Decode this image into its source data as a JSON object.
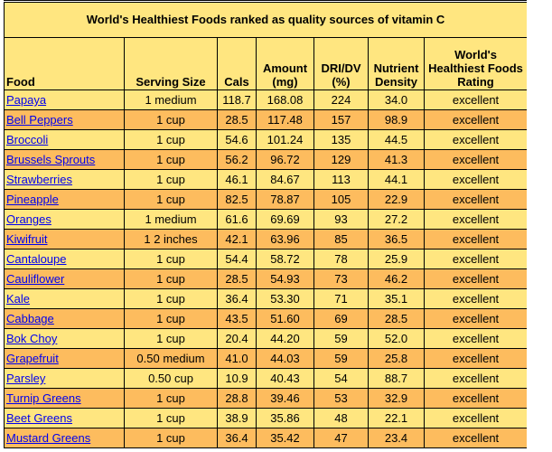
{
  "table": {
    "title": "World's Healthiest Foods ranked as quality sources of vitamin C",
    "headers": [
      "Food",
      "Serving Size",
      "Cals",
      "Amount (mg)",
      "DRI/DV (%)",
      "Nutrient Density",
      "World's Healthiest Foods Rating"
    ],
    "rows": [
      {
        "food": "Papaya",
        "serving": "1 medium",
        "cals": "118.7",
        "amount": "168.08",
        "dri": "224",
        "density": "34.0",
        "rating": "excellent"
      },
      {
        "food": "Bell Peppers",
        "serving": "1 cup",
        "cals": "28.5",
        "amount": "117.48",
        "dri": "157",
        "density": "98.9",
        "rating": "excellent"
      },
      {
        "food": "Broccoli",
        "serving": "1 cup",
        "cals": "54.6",
        "amount": "101.24",
        "dri": "135",
        "density": "44.5",
        "rating": "excellent"
      },
      {
        "food": "Brussels Sprouts",
        "serving": "1 cup",
        "cals": "56.2",
        "amount": "96.72",
        "dri": "129",
        "density": "41.3",
        "rating": "excellent"
      },
      {
        "food": "Strawberries",
        "serving": "1 cup",
        "cals": "46.1",
        "amount": "84.67",
        "dri": "113",
        "density": "44.1",
        "rating": "excellent"
      },
      {
        "food": "Pineapple",
        "serving": "1 cup",
        "cals": "82.5",
        "amount": "78.87",
        "dri": "105",
        "density": "22.9",
        "rating": "excellent"
      },
      {
        "food": "Oranges",
        "serving": "1 medium",
        "cals": "61.6",
        "amount": "69.69",
        "dri": "93",
        "density": "27.2",
        "rating": "excellent"
      },
      {
        "food": "Kiwifruit",
        "serving": "1 2 inches",
        "cals": "42.1",
        "amount": "63.96",
        "dri": "85",
        "density": "36.5",
        "rating": "excellent"
      },
      {
        "food": "Cantaloupe",
        "serving": "1 cup",
        "cals": "54.4",
        "amount": "58.72",
        "dri": "78",
        "density": "25.9",
        "rating": "excellent"
      },
      {
        "food": "Cauliflower",
        "serving": "1 cup",
        "cals": "28.5",
        "amount": "54.93",
        "dri": "73",
        "density": "46.2",
        "rating": "excellent"
      },
      {
        "food": "Kale",
        "serving": "1 cup",
        "cals": "36.4",
        "amount": "53.30",
        "dri": "71",
        "density": "35.1",
        "rating": "excellent"
      },
      {
        "food": "Cabbage",
        "serving": "1 cup",
        "cals": "43.5",
        "amount": "51.60",
        "dri": "69",
        "density": "28.5",
        "rating": "excellent"
      },
      {
        "food": "Bok Choy",
        "serving": "1 cup",
        "cals": "20.4",
        "amount": "44.20",
        "dri": "59",
        "density": "52.0",
        "rating": "excellent"
      },
      {
        "food": "Grapefruit",
        "serving": "0.50 medium",
        "cals": "41.0",
        "amount": "44.03",
        "dri": "59",
        "density": "25.8",
        "rating": "excellent"
      },
      {
        "food": "Parsley",
        "serving": "0.50 cup",
        "cals": "10.9",
        "amount": "40.43",
        "dri": "54",
        "density": "88.7",
        "rating": "excellent"
      },
      {
        "food": "Turnip Greens",
        "serving": "1 cup",
        "cals": "28.8",
        "amount": "39.46",
        "dri": "53",
        "density": "32.9",
        "rating": "excellent"
      },
      {
        "food": "Beet Greens",
        "serving": "1 cup",
        "cals": "38.9",
        "amount": "35.86",
        "dri": "48",
        "density": "22.1",
        "rating": "excellent"
      },
      {
        "food": "Mustard Greens",
        "serving": "1 cup",
        "cals": "36.4",
        "amount": "35.42",
        "dri": "47",
        "density": "23.4",
        "rating": "excellent"
      }
    ]
  },
  "colors": {
    "light_row": "#ffe680",
    "dark_row": "#fdbc5e",
    "link": "#0000ee"
  }
}
